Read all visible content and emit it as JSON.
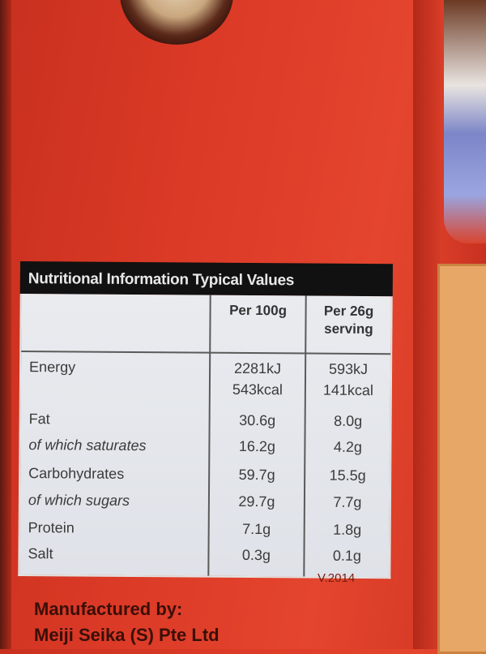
{
  "label": {
    "title": "Nutritional Information Typical Values",
    "columns": [
      "Per 100g",
      "Per 26g serving"
    ],
    "rows": [
      {
        "name": "Energy",
        "per100": "2281kJ",
        "serving": "593kJ",
        "italic": false
      },
      {
        "name": "",
        "per100": "543kcal",
        "serving": "141kcal",
        "italic": false
      },
      {
        "name": "Fat",
        "per100": "30.6g",
        "serving": "8.0g",
        "italic": false
      },
      {
        "name": "of which saturates",
        "per100": "16.2g",
        "serving": "4.2g",
        "italic": true
      },
      {
        "name": "Carbohydrates",
        "per100": "59.7g",
        "serving": "15.5g",
        "italic": false
      },
      {
        "name": "of which sugars",
        "per100": "29.7g",
        "serving": "7.7g",
        "italic": true
      },
      {
        "name": "Protein",
        "per100": "7.1g",
        "serving": "1.8g",
        "italic": false
      },
      {
        "name": "Salt",
        "per100": "0.3g",
        "serving": "0.1g",
        "italic": false
      }
    ],
    "version": "V.2014"
  },
  "manufacturer": {
    "heading": "Manufactured by:",
    "name": "Meiji Seika (S) Pte Ltd"
  },
  "colors": {
    "packaging": "#dc3b27",
    "table_header": "#111111",
    "table_body": "#e6e8ec"
  }
}
